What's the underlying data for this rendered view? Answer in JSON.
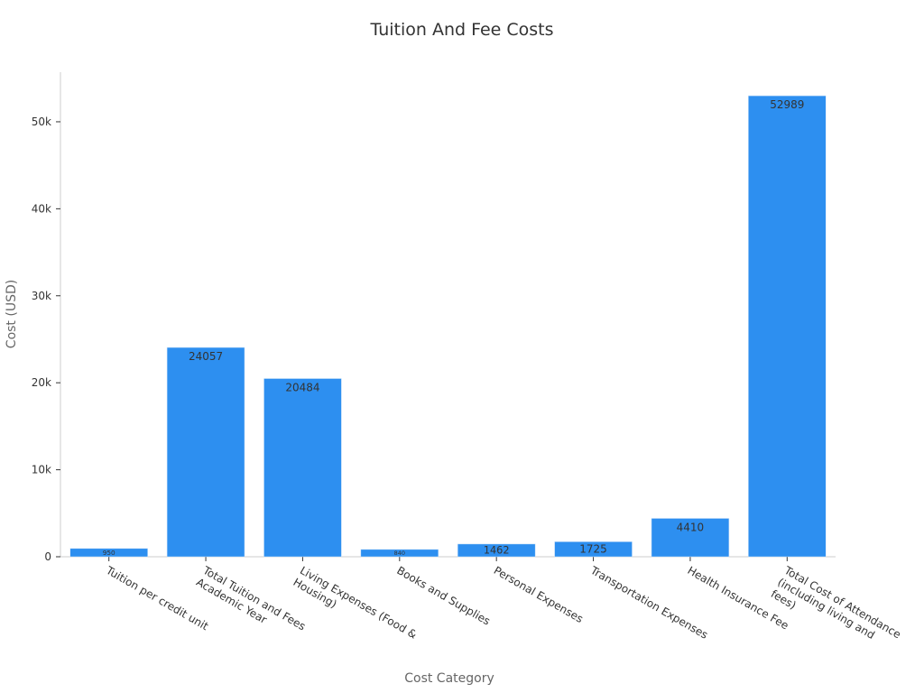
{
  "chart_data": {
    "type": "bar",
    "title": "Tuition And Fee Costs",
    "x_label": "Cost Category",
    "y_label": "Cost (USD)",
    "categories": [
      "Tuition per credit unit",
      "Total Tuition and Fees Academic Year",
      "Living Expenses (Food & Housing)",
      "Books and Supplies",
      "Personal Expenses",
      "Transportation Expenses",
      "Health Insurance Fee",
      "Total Cost of Attendance (including living and fees)"
    ],
    "values": [
      950,
      24057,
      20484,
      840,
      1462,
      1725,
      4410,
      52989
    ],
    "color": "#2d8ff0",
    "ylim": [
      0,
      55700
    ],
    "yticks": [
      0,
      {
        "value": 10000,
        "label": "10k"
      },
      {
        "value": 20000,
        "label": "20k"
      },
      {
        "value": 30000,
        "label": "30k"
      },
      {
        "value": 40000,
        "label": "40k"
      },
      {
        "value": 50000,
        "label": "50k"
      }
    ],
    "grid": false
  }
}
